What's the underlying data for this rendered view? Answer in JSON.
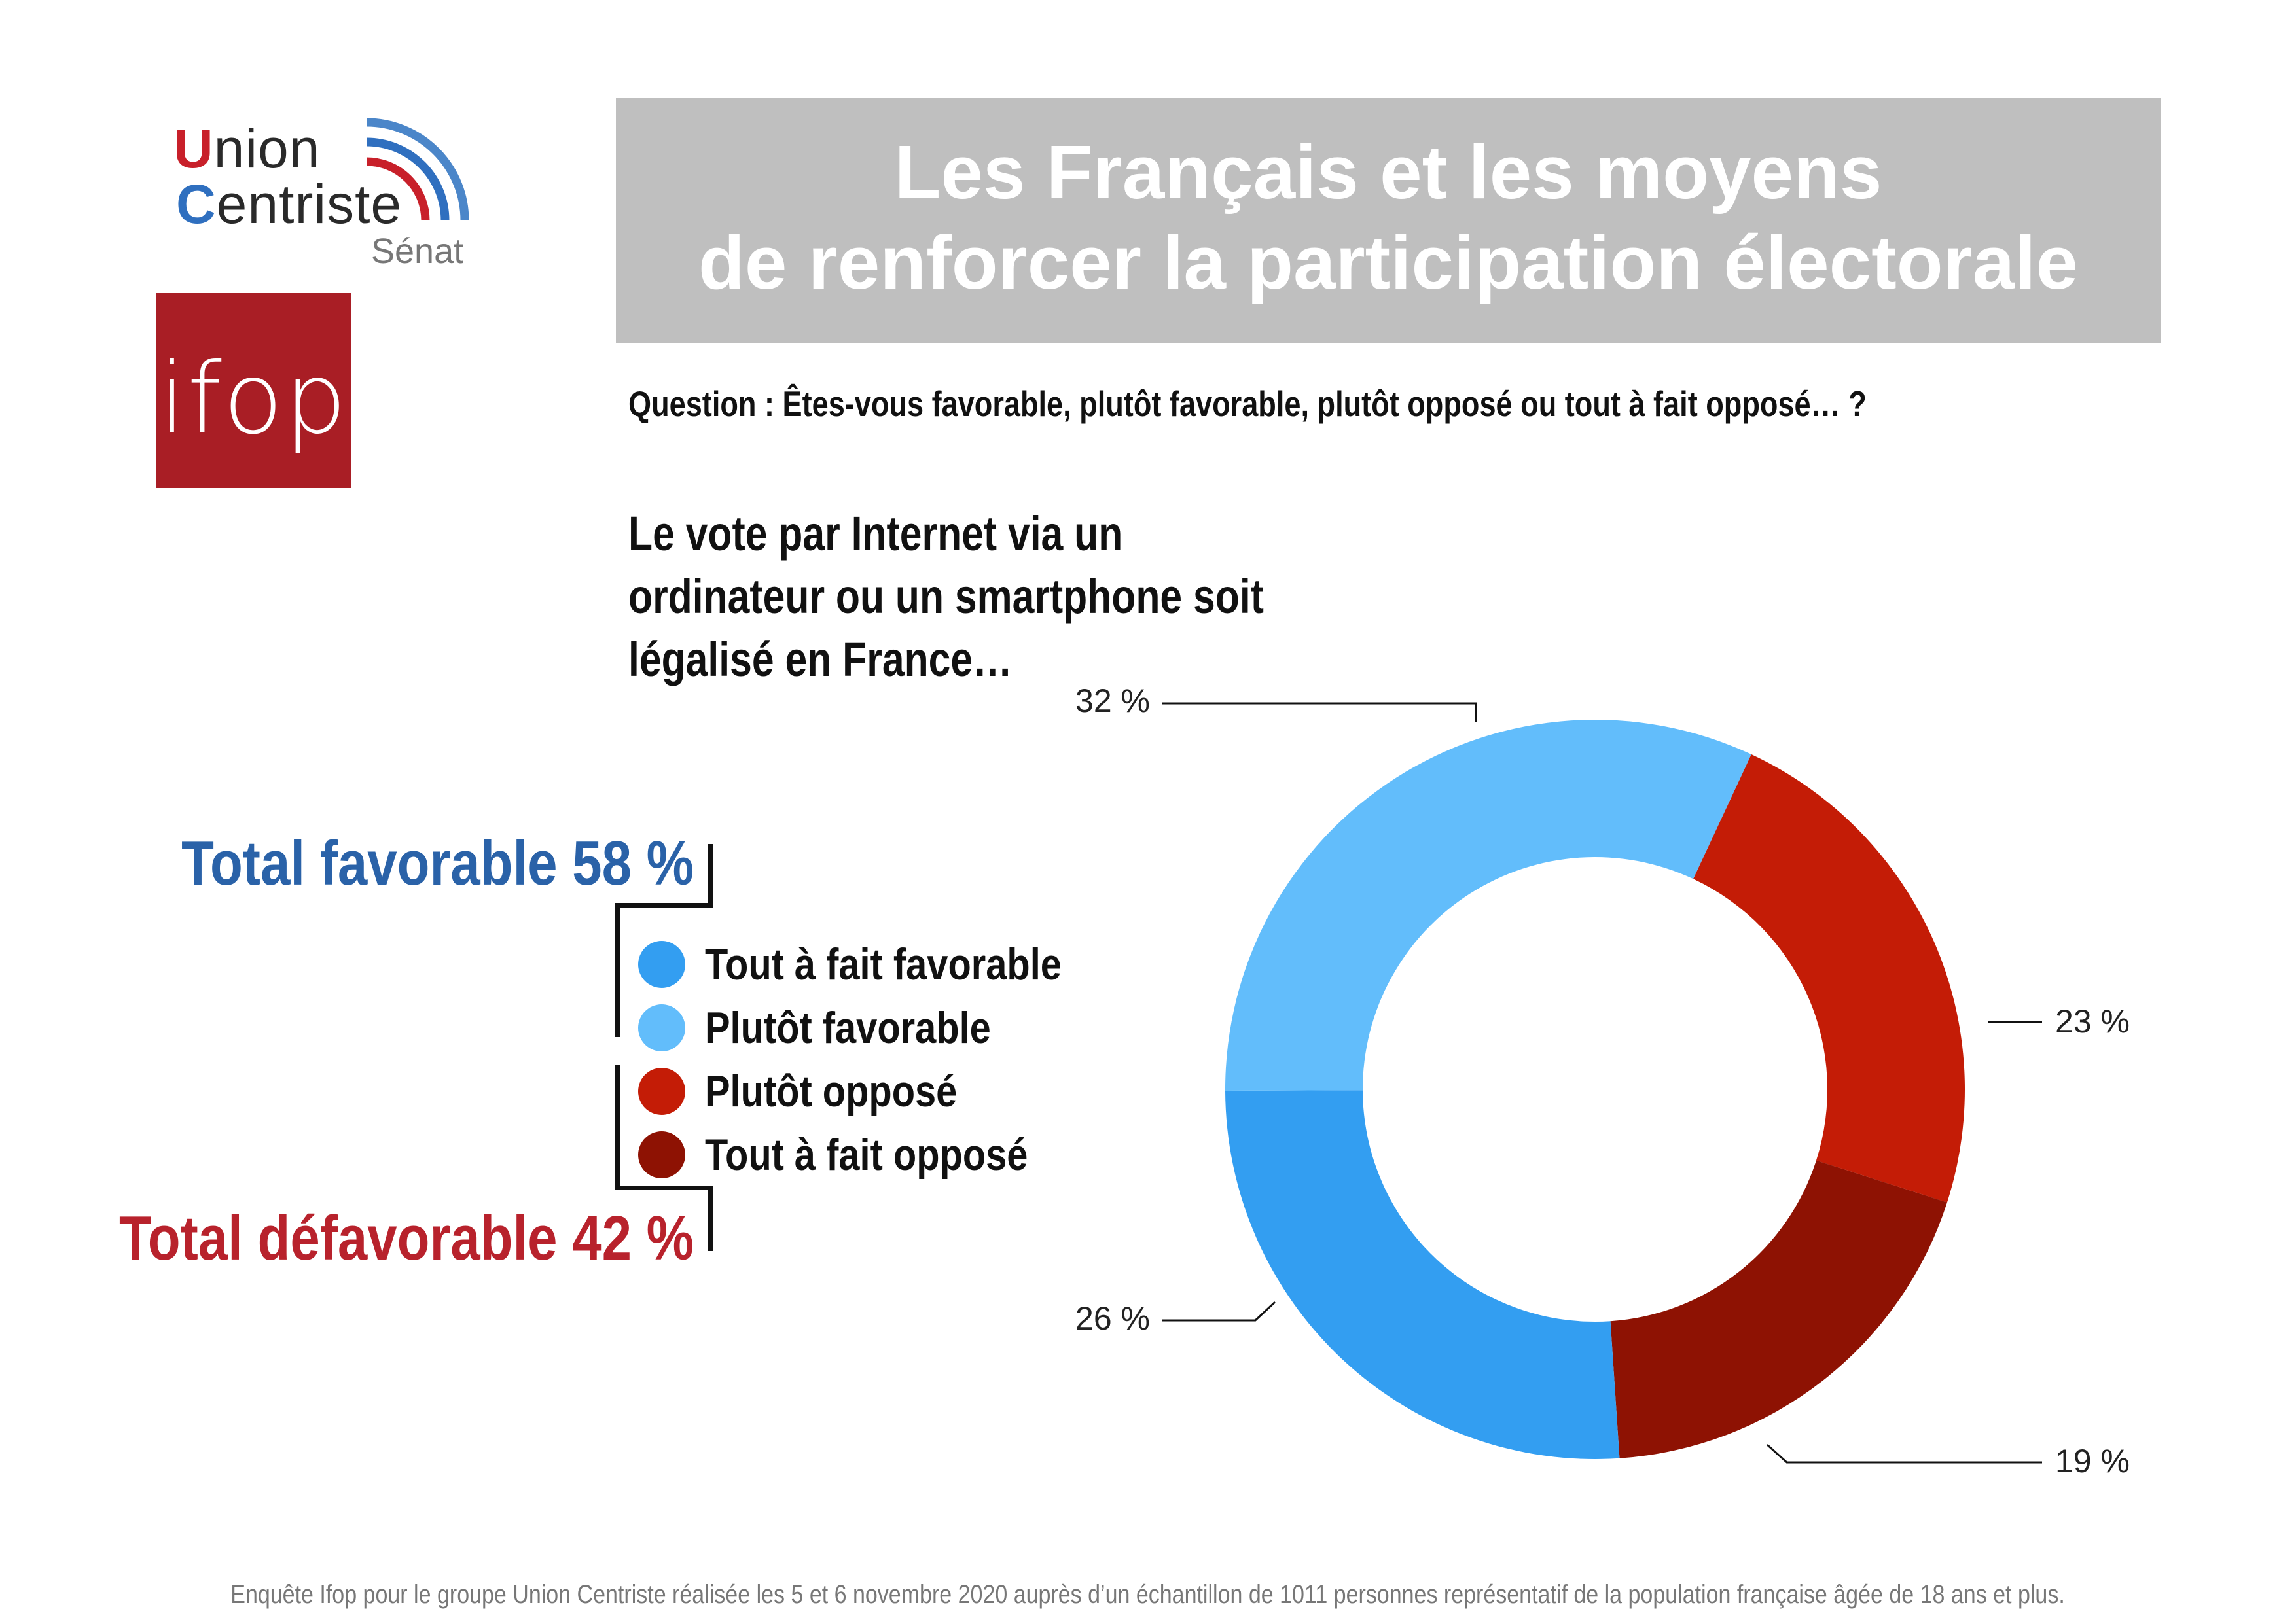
{
  "logos": {
    "union_line1": "Union",
    "union_line2": "Centriste",
    "union_line3": "Sénat",
    "ifop": "ifop"
  },
  "title": {
    "line1": "Les Français et les moyens",
    "line2": "de renforcer la participation électorale"
  },
  "question": "Question : Êtes-vous favorable, plutôt favorable, plutôt opposé ou tout à fait opposé… ?",
  "subject": "Le vote par Internet via un ordinateur ou un smartphone soit légalisé en France…",
  "totals": {
    "favorable": "Total favorable 58 %",
    "defavorable": "Total défavorable 42 %"
  },
  "legend": [
    {
      "label": "Tout à fait favorable",
      "color": "#339ef1"
    },
    {
      "label": "Plutôt favorable",
      "color": "#62bdfb"
    },
    {
      "label": "Plutôt opposé",
      "color": "#c41c06"
    },
    {
      "label": "Tout à fait opposé",
      "color": "#8e1203"
    }
  ],
  "chart_data": {
    "type": "pie",
    "donut": true,
    "categories": [
      "Plutôt favorable",
      "Plutôt opposé",
      "Tout à fait opposé",
      "Tout à fait favorable"
    ],
    "values": [
      32,
      23,
      19,
      26
    ],
    "labels": [
      "32 %",
      "23 %",
      "19 %",
      "26 %"
    ],
    "colors": [
      "#62bdfb",
      "#c41c06",
      "#8e1203",
      "#339ef1"
    ]
  },
  "footnote": "Enquête Ifop pour le groupe Union Centriste réalisée les 5 et 6 novembre 2020 auprès d’un échantillon de 1011 personnes représentatif de la population française âgée de 18 ans et plus."
}
